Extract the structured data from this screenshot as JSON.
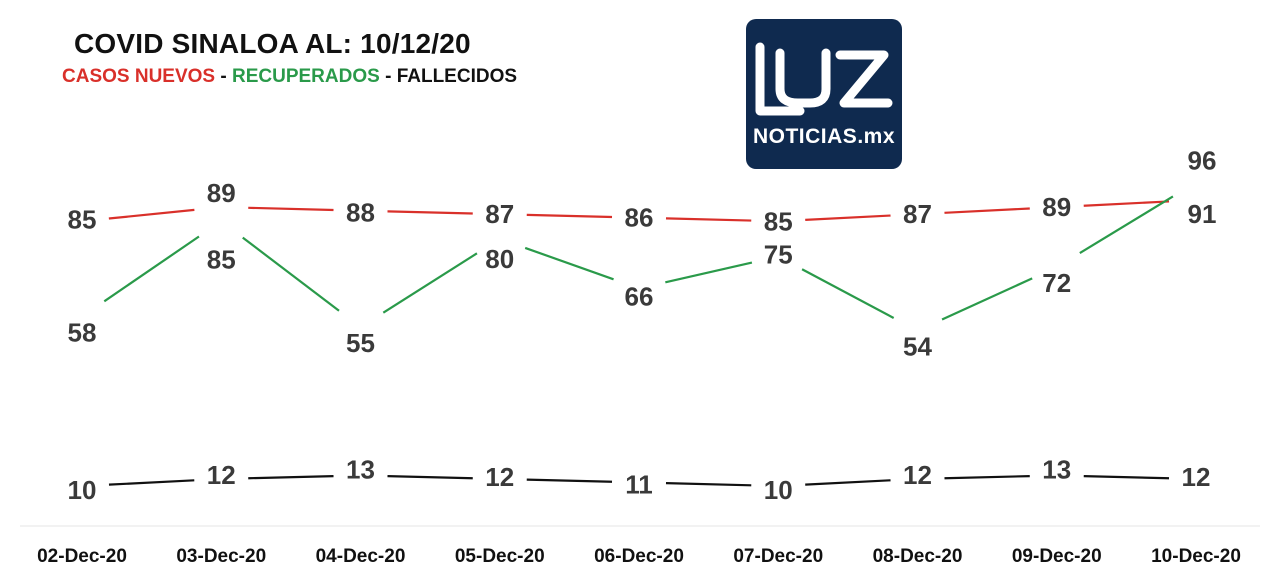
{
  "header": {
    "title": "COVID SINALOA AL: 10/12/20",
    "legend": {
      "casos": "CASOS NUEVOS",
      "sep1": " - ",
      "recuperados": "RECUPERADOS",
      "sep2": " - ",
      "fallecidos": "FALLECIDOS"
    }
  },
  "logo": {
    "main_text": "LUZ",
    "sub_text": "NOTICIAS.mx",
    "bg_color": "#0f2a4f"
  },
  "colors": {
    "casos": "#d9302a",
    "recuperados": "#2a9a4a",
    "fallecidos": "#111111"
  },
  "chart_data": {
    "type": "line",
    "title": "COVID SINALOA AL: 10/12/20",
    "categories": [
      "02-Dec-20",
      "03-Dec-20",
      "04-Dec-20",
      "05-Dec-20",
      "06-Dec-20",
      "07-Dec-20",
      "08-Dec-20",
      "09-Dec-20",
      "10-Dec-20"
    ],
    "series": [
      {
        "name": "CASOS NUEVOS",
        "color": "#d9302a",
        "values": [
          85,
          89,
          88,
          87,
          86,
          85,
          87,
          89,
          91
        ]
      },
      {
        "name": "RECUPERADOS",
        "color": "#2a9a4a",
        "values": [
          58,
          85,
          55,
          80,
          66,
          75,
          54,
          72,
          96
        ]
      },
      {
        "name": "FALLECIDOS",
        "color": "#111111",
        "values": [
          10,
          12,
          13,
          12,
          11,
          10,
          12,
          13,
          12
        ]
      }
    ],
    "grid": false,
    "legend_position": "top-left",
    "data_labels": true
  }
}
